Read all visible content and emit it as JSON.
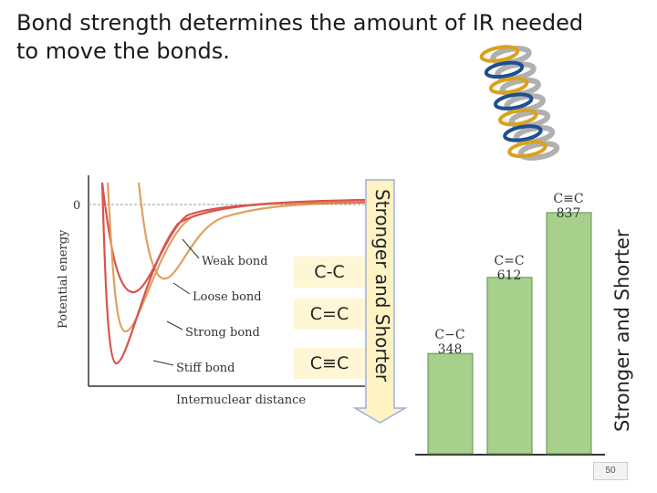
{
  "title": "Bond strength determines the amount of IR needed to move the bonds.",
  "energy_curves": {
    "y_axis_label": "Potential energy",
    "x_axis_label": "Internuclear distance",
    "zero_label": "0",
    "curve_labels": [
      "Weak bond",
      "Loose bond",
      "Strong bond",
      "Stiff bond"
    ]
  },
  "bond_boxes": [
    "C-C",
    "C=C",
    "C≡C"
  ],
  "arrow_label": "Stronger and Shorter",
  "side_label": "Stronger and Shorter",
  "chart_data": {
    "type": "bar",
    "categories": [
      "C−C",
      "C=C",
      "C≡C"
    ],
    "values": [
      348,
      612,
      837
    ],
    "ylim": [
      0,
      900
    ],
    "bar_color": "#a8d08d",
    "title": "",
    "xlabel": "",
    "ylabel": ""
  },
  "colors": {
    "red_curve": "#d9534f",
    "orange_curve": "#e0a060",
    "arrow_fill": "#fff3c4",
    "arrow_stroke": "#9bb0d8"
  },
  "page_number": "50",
  "spring_icon": "spring-icon"
}
